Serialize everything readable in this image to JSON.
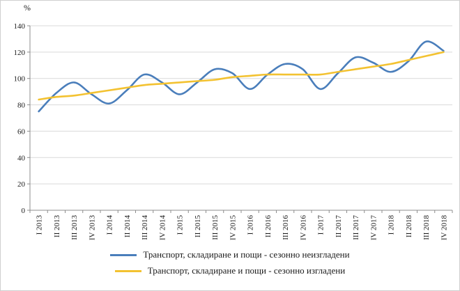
{
  "chart_data": {
    "type": "line",
    "title": "",
    "xlabel": "",
    "ylabel": "%",
    "ylim": [
      0,
      140
    ],
    "ytick_step": 20,
    "grid": true,
    "legend_position": "bottom",
    "categories": [
      "I 2013",
      "II 2013",
      "III 2013",
      "IV 2013",
      "I 2014",
      "II 2014",
      "III 2014",
      "IV 2014",
      "I 2015",
      "II 2015",
      "III 2015",
      "IV 2015",
      "I 2016",
      "II 2016",
      "III 2016",
      "IV 2016",
      "I 2017",
      "II 2017",
      "III 2017",
      "IV 2017",
      "I 2018",
      "II 2018",
      "III 2018",
      "IV 2018"
    ],
    "series": [
      {
        "name": "Транспорт, складиране и пощи - сезонно неизгладени",
        "color": "#4a7ebb",
        "values": [
          75,
          89,
          97,
          88,
          81,
          91,
          103,
          97,
          88,
          97,
          107,
          104,
          92,
          103,
          111,
          107,
          92,
          104,
          116,
          112,
          105,
          113,
          128,
          121
        ]
      },
      {
        "name": "Транспорт, складиране и пощи - сезонно изгладени",
        "color": "#f3c231",
        "values": [
          84,
          86,
          87,
          89,
          91,
          93,
          95,
          96,
          97,
          98,
          99,
          101,
          102,
          103,
          103,
          103,
          103,
          105,
          107,
          109,
          111,
          114,
          117,
          120
        ]
      }
    ]
  }
}
